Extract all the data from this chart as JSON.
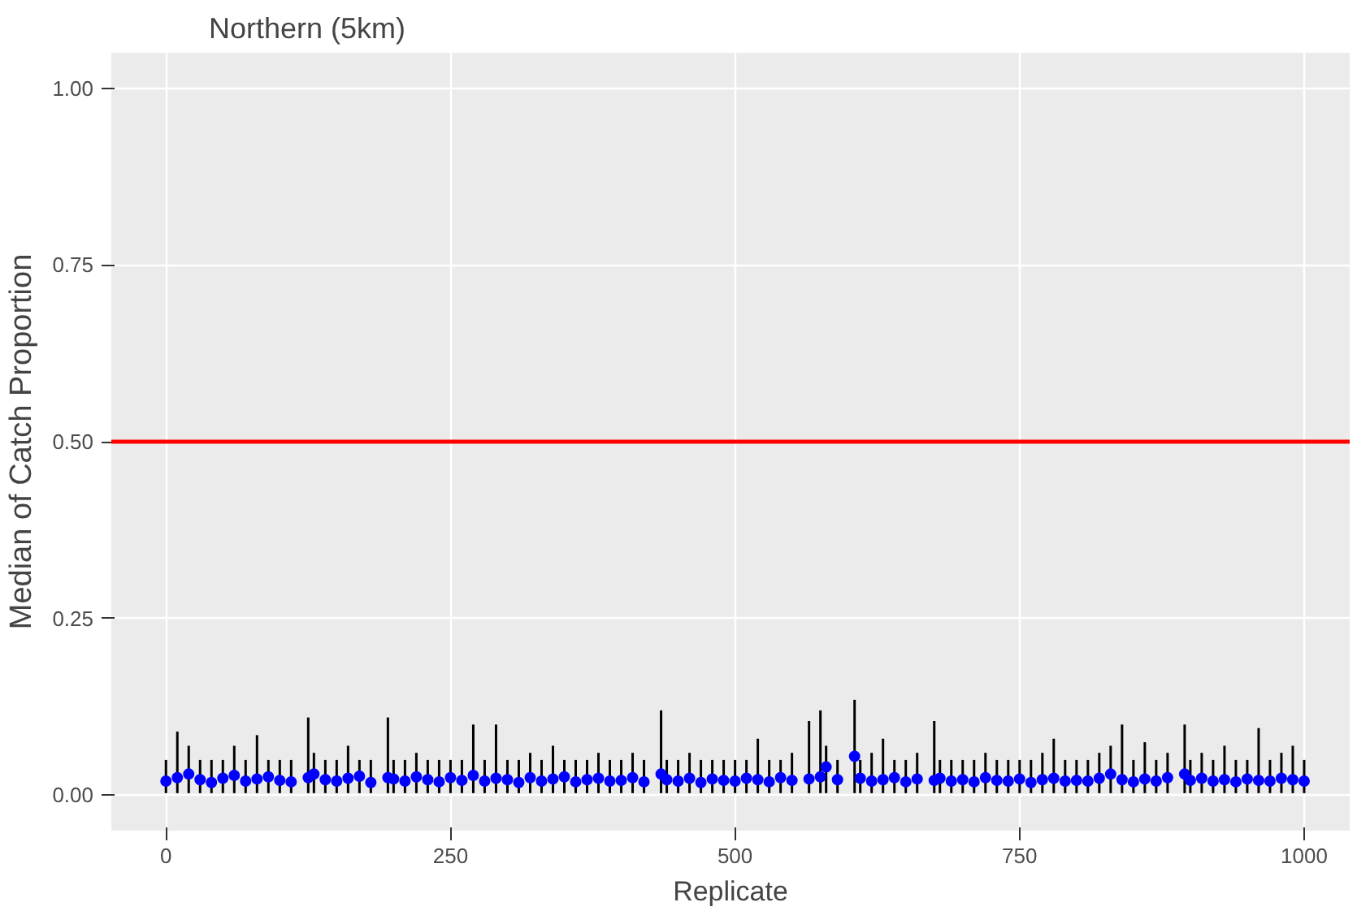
{
  "chart_data": {
    "type": "scatter",
    "title": "Northern (5km)",
    "xlabel": "Replicate",
    "ylabel": "Median of Catch Proportion",
    "x": [
      0,
      10,
      20,
      30,
      40,
      50,
      60,
      70,
      80,
      90,
      100,
      110,
      125,
      130,
      140,
      150,
      160,
      170,
      180,
      195,
      200,
      210,
      220,
      230,
      240,
      250,
      260,
      270,
      280,
      290,
      300,
      310,
      320,
      330,
      340,
      350,
      360,
      370,
      380,
      390,
      400,
      410,
      420,
      435,
      440,
      450,
      460,
      470,
      480,
      490,
      500,
      510,
      520,
      530,
      540,
      550,
      565,
      575,
      580,
      590,
      605,
      610,
      620,
      630,
      640,
      650,
      660,
      675,
      680,
      690,
      700,
      710,
      720,
      730,
      740,
      750,
      760,
      770,
      780,
      790,
      800,
      810,
      820,
      830,
      840,
      850,
      860,
      870,
      880,
      895,
      900,
      910,
      920,
      930,
      940,
      950,
      960,
      970,
      980,
      990,
      1000
    ],
    "series": [
      {
        "color": "#0000ff",
        "values": [
          0.02,
          0.025,
          0.03,
          0.022,
          0.018,
          0.024,
          0.028,
          0.02,
          0.023,
          0.026,
          0.021,
          0.019,
          0.025,
          0.03,
          0.022,
          0.02,
          0.024,
          0.027,
          0.018,
          0.025,
          0.023,
          0.02,
          0.026,
          0.022,
          0.019,
          0.025,
          0.021,
          0.028,
          0.02,
          0.024,
          0.022,
          0.018,
          0.025,
          0.02,
          0.023,
          0.026,
          0.019,
          0.022,
          0.024,
          0.02,
          0.021,
          0.025,
          0.019,
          0.03,
          0.022,
          0.02,
          0.024,
          0.018,
          0.023,
          0.021,
          0.02,
          0.024,
          0.022,
          0.019,
          0.025,
          0.021,
          0.023,
          0.026,
          0.04,
          0.022,
          0.055,
          0.024,
          0.02,
          0.022,
          0.025,
          0.019,
          0.023,
          0.021,
          0.024,
          0.02,
          0.022,
          0.019,
          0.025,
          0.021,
          0.02,
          0.023,
          0.018,
          0.022,
          0.024,
          0.02,
          0.021,
          0.02,
          0.024,
          0.03,
          0.022,
          0.019,
          0.023,
          0.02,
          0.025,
          0.03,
          0.021,
          0.024,
          0.02,
          0.022,
          0.019,
          0.023,
          0.021,
          0.02,
          0.024,
          0.022,
          0.02
        ],
        "errors": [
          [
            0.003,
            0.05
          ],
          [
            0.003,
            0.09
          ],
          [
            0.003,
            0.07
          ],
          [
            0.003,
            0.05
          ],
          [
            0.003,
            0.05
          ],
          [
            0.003,
            0.05
          ],
          [
            0.003,
            0.07
          ],
          [
            0.003,
            0.05
          ],
          [
            0.003,
            0.085
          ],
          [
            0.003,
            0.05
          ],
          [
            0.003,
            0.05
          ],
          [
            0.003,
            0.05
          ],
          [
            0.003,
            0.11
          ],
          [
            0.003,
            0.06
          ],
          [
            0.003,
            0.05
          ],
          [
            0.003,
            0.05
          ],
          [
            0.003,
            0.07
          ],
          [
            0.003,
            0.05
          ],
          [
            0.003,
            0.05
          ],
          [
            0.003,
            0.11
          ],
          [
            0.003,
            0.05
          ],
          [
            0.003,
            0.05
          ],
          [
            0.003,
            0.06
          ],
          [
            0.003,
            0.05
          ],
          [
            0.003,
            0.05
          ],
          [
            0.003,
            0.05
          ],
          [
            0.003,
            0.05
          ],
          [
            0.003,
            0.1
          ],
          [
            0.003,
            0.05
          ],
          [
            0.003,
            0.1
          ],
          [
            0.003,
            0.05
          ],
          [
            0.003,
            0.05
          ],
          [
            0.003,
            0.06
          ],
          [
            0.003,
            0.05
          ],
          [
            0.003,
            0.07
          ],
          [
            0.003,
            0.05
          ],
          [
            0.003,
            0.05
          ],
          [
            0.003,
            0.05
          ],
          [
            0.003,
            0.06
          ],
          [
            0.003,
            0.05
          ],
          [
            0.003,
            0.05
          ],
          [
            0.003,
            0.06
          ],
          [
            0.003,
            0.05
          ],
          [
            0.003,
            0.12
          ],
          [
            0.003,
            0.05
          ],
          [
            0.003,
            0.05
          ],
          [
            0.003,
            0.06
          ],
          [
            0.003,
            0.05
          ],
          [
            0.003,
            0.05
          ],
          [
            0.003,
            0.05
          ],
          [
            0.003,
            0.05
          ],
          [
            0.003,
            0.05
          ],
          [
            0.003,
            0.08
          ],
          [
            0.003,
            0.05
          ],
          [
            0.003,
            0.05
          ],
          [
            0.003,
            0.06
          ],
          [
            0.003,
            0.105
          ],
          [
            0.003,
            0.12
          ],
          [
            0.003,
            0.07
          ],
          [
            0.003,
            0.05
          ],
          [
            0.003,
            0.135
          ],
          [
            0.003,
            0.05
          ],
          [
            0.003,
            0.06
          ],
          [
            0.003,
            0.08
          ],
          [
            0.003,
            0.05
          ],
          [
            0.003,
            0.05
          ],
          [
            0.003,
            0.06
          ],
          [
            0.003,
            0.105
          ],
          [
            0.003,
            0.05
          ],
          [
            0.003,
            0.05
          ],
          [
            0.003,
            0.05
          ],
          [
            0.003,
            0.05
          ],
          [
            0.003,
            0.06
          ],
          [
            0.003,
            0.05
          ],
          [
            0.003,
            0.05
          ],
          [
            0.003,
            0.05
          ],
          [
            0.003,
            0.05
          ],
          [
            0.003,
            0.06
          ],
          [
            0.003,
            0.08
          ],
          [
            0.003,
            0.05
          ],
          [
            0.003,
            0.05
          ],
          [
            0.003,
            0.05
          ],
          [
            0.003,
            0.06
          ],
          [
            0.003,
            0.07
          ],
          [
            0.003,
            0.1
          ],
          [
            0.003,
            0.05
          ],
          [
            0.003,
            0.075
          ],
          [
            0.003,
            0.05
          ],
          [
            0.003,
            0.06
          ],
          [
            0.003,
            0.1
          ],
          [
            0.003,
            0.05
          ],
          [
            0.003,
            0.06
          ],
          [
            0.003,
            0.05
          ],
          [
            0.003,
            0.07
          ],
          [
            0.003,
            0.05
          ],
          [
            0.003,
            0.05
          ],
          [
            0.003,
            0.095
          ],
          [
            0.003,
            0.05
          ],
          [
            0.003,
            0.06
          ],
          [
            0.003,
            0.07
          ],
          [
            0.003,
            0.05
          ]
        ]
      }
    ],
    "xlim": [
      -48,
      1040
    ],
    "ylim": [
      -0.05,
      1.05
    ],
    "xticks": [
      0,
      250,
      500,
      750,
      1000
    ],
    "yticks": [
      {
        "value": 0,
        "label": "0.00"
      },
      {
        "value": 0.25,
        "label": "0.25"
      },
      {
        "value": 0.5,
        "label": "0.50"
      },
      {
        "value": 0.75,
        "label": "0.75"
      },
      {
        "value": 1,
        "label": "1.00"
      }
    ],
    "ref_lines": [
      {
        "axis": "y",
        "value": 0.5,
        "color": "#ff0000"
      }
    ],
    "grid": true,
    "marker": "circle"
  }
}
